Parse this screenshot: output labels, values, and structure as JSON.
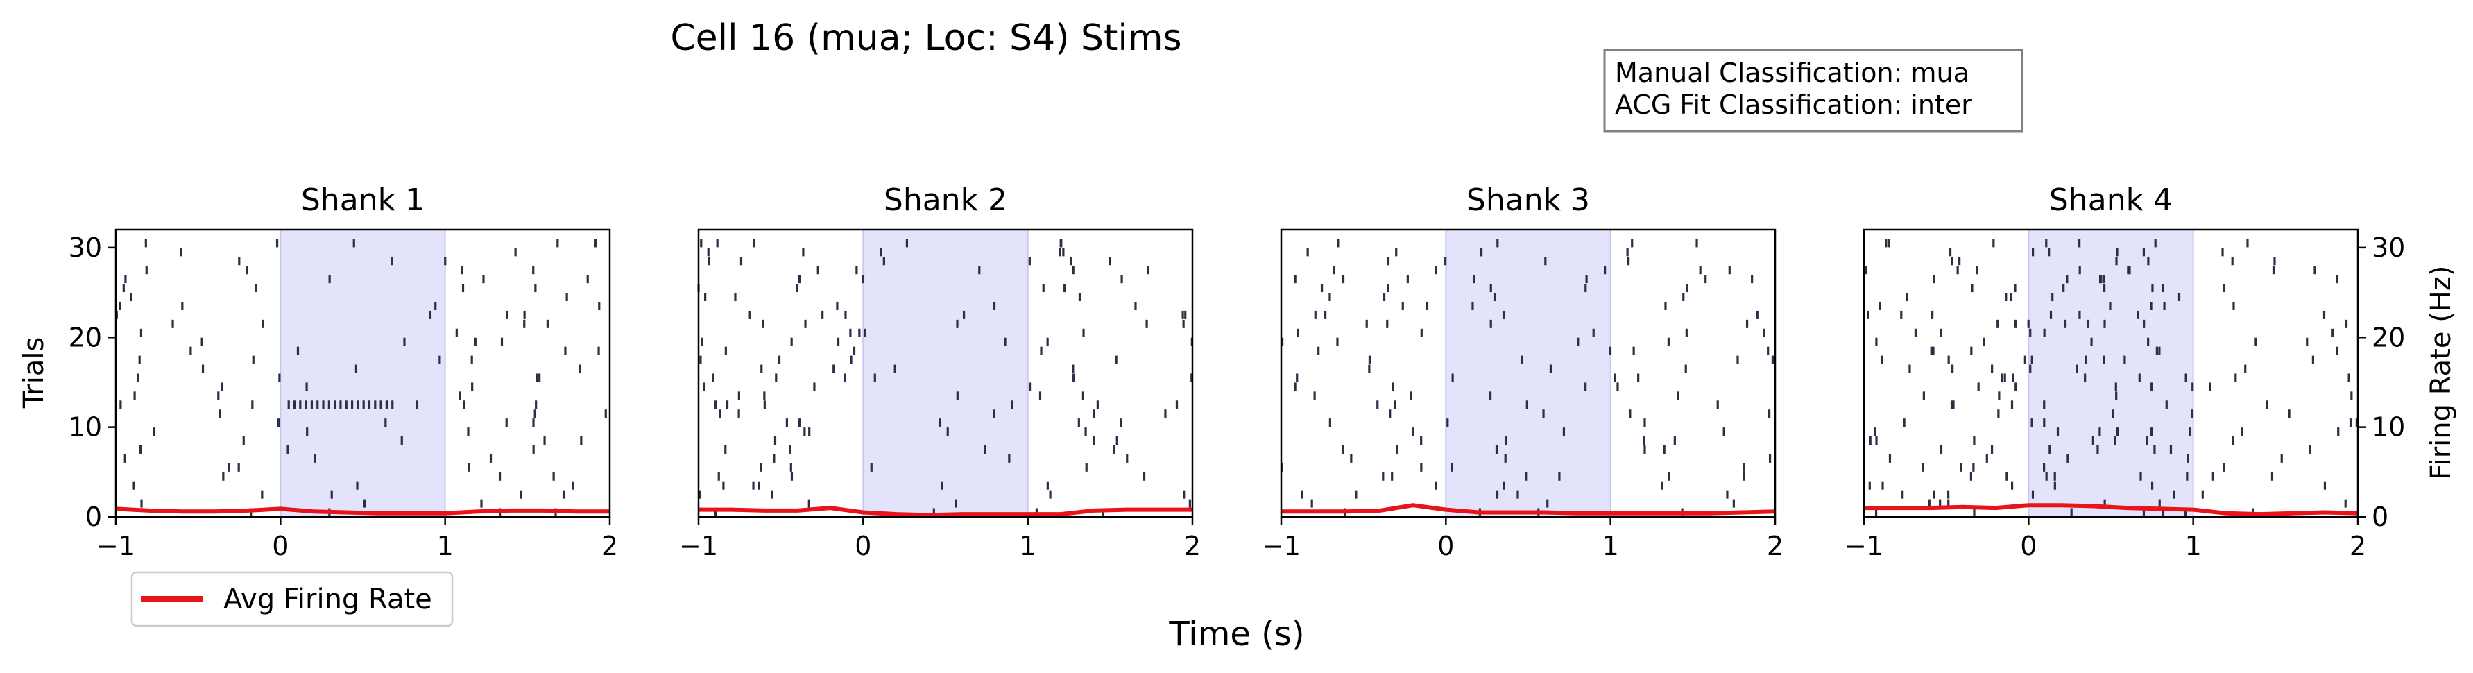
{
  "figure": {
    "title": "Cell 16 (mua; Loc: S4) Stims",
    "info_box": {
      "lines": [
        "Manual Classification: mua",
        "ACG Fit Classification: inter"
      ]
    },
    "legend": {
      "label": "Avg Firing Rate",
      "placement": "lower-left",
      "color": "#e8141a"
    },
    "xlabel": "Time (s)",
    "ylabel_left": "Trials",
    "ylabel_right": "Firing Rate (Hz)",
    "colors": {
      "spike": "#2d2d45",
      "rate": "#e8141a",
      "stim_shade": "#e3e3fb",
      "stim_edge": "#c7c7f2"
    }
  },
  "chart_data": [
    {
      "type": "raster",
      "title": "Shank 1",
      "xlim": [
        -1,
        2
      ],
      "ylim": [
        0,
        32
      ],
      "xticks": [
        -1,
        0,
        1,
        2
      ],
      "yticks": [
        0,
        10,
        20,
        30
      ],
      "stim_window": [
        0,
        1
      ],
      "rate_line": {
        "t": [
          -1,
          -0.8,
          -0.6,
          -0.4,
          -0.2,
          0,
          0.2,
          0.4,
          0.6,
          0.8,
          1,
          1.2,
          1.4,
          1.6,
          1.8,
          2
        ],
        "hz": [
          0.9,
          0.7,
          0.6,
          0.6,
          0.7,
          0.9,
          0.6,
          0.5,
          0.4,
          0.4,
          0.4,
          0.6,
          0.7,
          0.7,
          0.6,
          0.6
        ]
      },
      "spike_density": {
        "pre": 0.6,
        "stim": 0.2,
        "post": 0.55,
        "burst_trial": 12
      }
    },
    {
      "type": "raster",
      "title": "Shank 2",
      "xlim": [
        -1,
        2
      ],
      "ylim": [
        0,
        32
      ],
      "xticks": [
        -1,
        0,
        1,
        2
      ],
      "yticks": [
        0,
        10,
        20,
        30
      ],
      "stim_window": [
        0,
        1
      ],
      "rate_line": {
        "t": [
          -1,
          -0.8,
          -0.6,
          -0.4,
          -0.2,
          0,
          0.2,
          0.4,
          0.6,
          0.8,
          1,
          1.2,
          1.4,
          1.6,
          1.8,
          2
        ],
        "hz": [
          0.8,
          0.8,
          0.7,
          0.7,
          1.0,
          0.5,
          0.3,
          0.2,
          0.3,
          0.3,
          0.3,
          0.3,
          0.7,
          0.8,
          0.8,
          0.8
        ]
      },
      "spike_density": {
        "pre": 0.7,
        "stim": 0.3,
        "post": 0.6
      }
    },
    {
      "type": "raster",
      "title": "Shank 3",
      "xlim": [
        -1,
        2
      ],
      "ylim": [
        0,
        32
      ],
      "xticks": [
        -1,
        0,
        1,
        2
      ],
      "yticks": [
        0,
        10,
        20,
        30
      ],
      "stim_window": [
        0,
        1
      ],
      "rate_line": {
        "t": [
          -1,
          -0.8,
          -0.6,
          -0.4,
          -0.2,
          0,
          0.2,
          0.4,
          0.6,
          0.8,
          1,
          1.2,
          1.4,
          1.6,
          1.8,
          2
        ],
        "hz": [
          0.6,
          0.6,
          0.6,
          0.7,
          1.3,
          0.8,
          0.5,
          0.5,
          0.5,
          0.4,
          0.4,
          0.4,
          0.4,
          0.4,
          0.5,
          0.6
        ]
      },
      "spike_density": {
        "pre": 0.6,
        "stim": 0.45,
        "post": 0.45
      }
    },
    {
      "type": "raster",
      "title": "Shank 4",
      "xlim": [
        -1,
        2
      ],
      "ylim": [
        0,
        32
      ],
      "xticks": [
        -1,
        0,
        1,
        2
      ],
      "yticks": [
        0,
        10,
        20,
        30
      ],
      "right_axis": {
        "ylim": [
          0,
          32
        ],
        "yticks": [
          0,
          10,
          20,
          30
        ]
      },
      "stim_window": [
        0,
        1
      ],
      "rate_line": {
        "t": [
          -1,
          -0.8,
          -0.6,
          -0.4,
          -0.2,
          0,
          0.2,
          0.4,
          0.6,
          0.8,
          1,
          1.2,
          1.4,
          1.6,
          1.8,
          2
        ],
        "hz": [
          1.0,
          1.0,
          1.0,
          1.1,
          1.0,
          1.3,
          1.3,
          1.2,
          1.0,
          0.9,
          0.8,
          0.4,
          0.3,
          0.4,
          0.5,
          0.4
        ]
      },
      "spike_density": {
        "pre": 0.8,
        "stim": 1.1,
        "post": 0.4
      }
    }
  ]
}
